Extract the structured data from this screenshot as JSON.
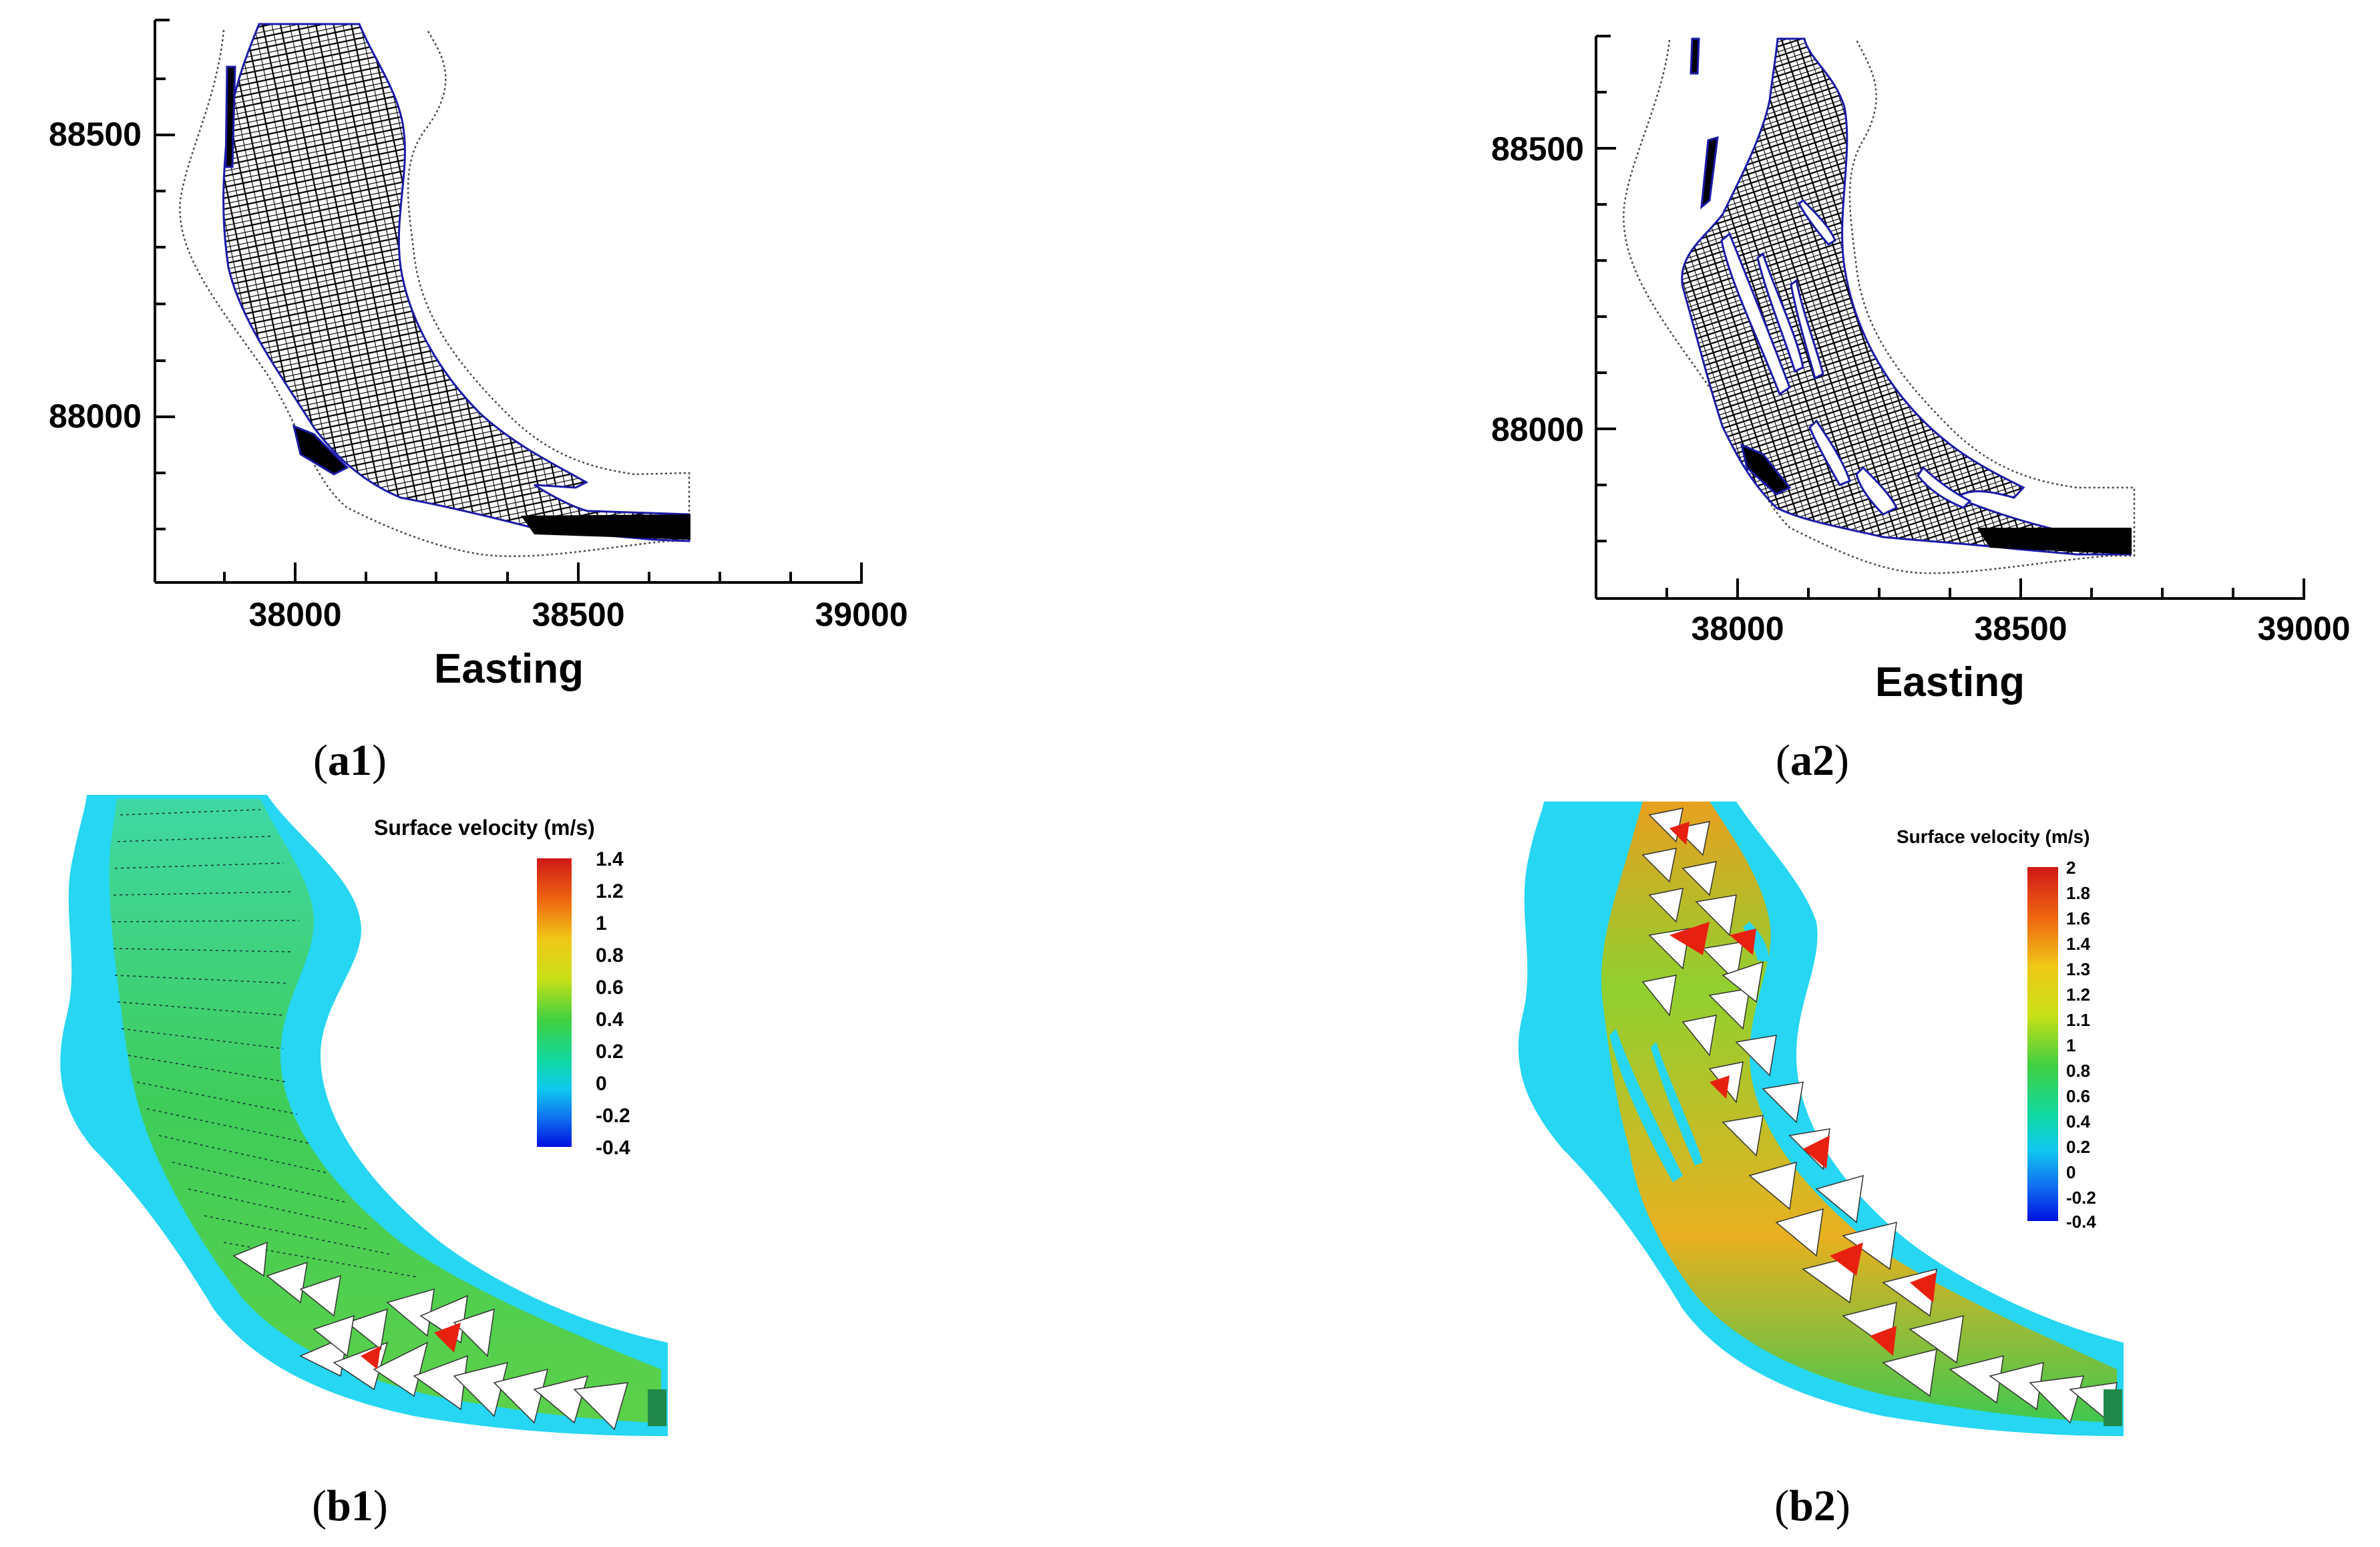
{
  "panel_a1": {
    "x_ticks": [
      "38000",
      "38500",
      "39000"
    ],
    "y_ticks": [
      "88500",
      "88000"
    ],
    "xlabel": "Easting",
    "caption_label": "a1"
  },
  "panel_a2": {
    "x_ticks": [
      "38000",
      "38500",
      "39000"
    ],
    "y_ticks": [
      "88500",
      "88000"
    ],
    "xlabel": "Easting",
    "caption_label": "a2"
  },
  "panel_b1": {
    "legend_title": "Surface velocity (m/s)",
    "legend_ticks": [
      "1.4",
      "1.2",
      "1",
      "0.8",
      "0.6",
      "0.4",
      "0.2",
      "0",
      "-0.2",
      "-0.4"
    ],
    "caption_label": "b1"
  },
  "panel_b2": {
    "legend_title": "Surface velocity (m/s)",
    "legend_ticks": [
      "2",
      "1.8",
      "1.6",
      "1.4",
      "1.3",
      "1.2",
      "1.1",
      "1",
      "0.8",
      "0.6",
      "0.4",
      "0.2",
      "0",
      "-0.2",
      "-0.4"
    ],
    "caption_label": "b2"
  },
  "colors": {
    "water": "#26d6f2",
    "mesh": "#000000",
    "mesh_edge": "#1a1aa8",
    "colormap": [
      "#0018e8",
      "#00a8f0",
      "#00e8c8",
      "#20d040",
      "#a8e020",
      "#f0e020",
      "#f8a010",
      "#e82010"
    ]
  }
}
